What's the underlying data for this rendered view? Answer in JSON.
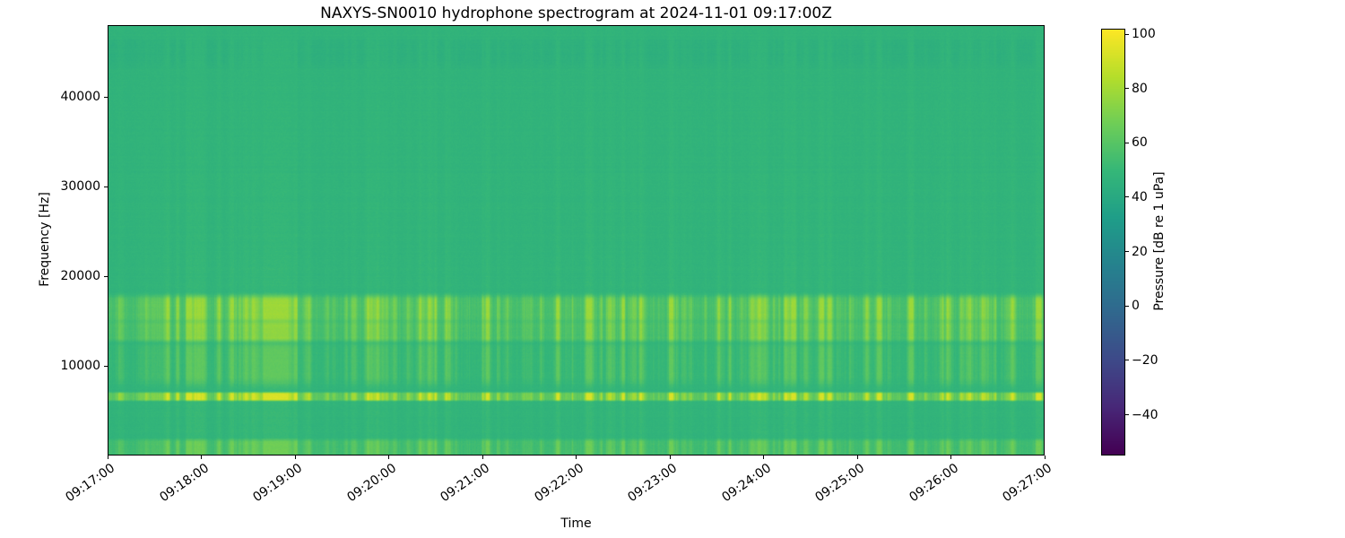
{
  "chart_data": {
    "type": "heatmap",
    "variant": "spectrogram",
    "title": "NAXYS-SN0010 hydrophone spectrogram at 2024-11-01 09:17:00Z",
    "xlabel": "Time",
    "ylabel": "Frequency [Hz]",
    "x_ticks": [
      "09:17:00",
      "09:18:00",
      "09:19:00",
      "09:20:00",
      "09:21:00",
      "09:22:00",
      "09:23:00",
      "09:24:00",
      "09:25:00",
      "09:26:00",
      "09:27:00"
    ],
    "y_ticks": [
      10000,
      20000,
      30000,
      40000
    ],
    "freq_range_hz": [
      0,
      48000
    ],
    "time_span_s": 600,
    "grid": false,
    "legend": false,
    "colorbar": {
      "label": "Pressure [dB re 1 uPa]",
      "ticks": [
        -40,
        -20,
        0,
        20,
        40,
        60,
        80,
        100
      ],
      "vmin": -55,
      "vmax": 102,
      "colormap": "viridis",
      "viridis_stops": [
        "#440154",
        "#482878",
        "#3e4a89",
        "#31688e",
        "#26828e",
        "#1f9e89",
        "#35b779",
        "#6ece58",
        "#b5de2b",
        "#fde725"
      ]
    },
    "background_db": 47,
    "bands": [
      {
        "name": "low-frequency-noise-strip",
        "range_hz": [
          0,
          1700
        ],
        "boost_db": 5.5,
        "transient_gain": 9
      },
      {
        "name": "tonal-band-6500hz",
        "range_hz": [
          6100,
          7000
        ],
        "boost_db": 13,
        "transient_gain": 24
      },
      {
        "name": "faint-mid-band",
        "range_hz": [
          8000,
          12500
        ],
        "boost_db": 1.5,
        "transient_gain": 9
      },
      {
        "name": "broadband-13-15khz",
        "range_hz": [
          12800,
          14800
        ],
        "boost_db": 6.5,
        "transient_gain": 15
      },
      {
        "name": "broadband-15-18khz",
        "range_hz": [
          14900,
          17800
        ],
        "boost_db": 7.5,
        "transient_gain": 17
      },
      {
        "name": "high-frequency-dip",
        "range_hz": [
          43500,
          46500
        ],
        "boost_db": -2.5,
        "transient_gain": 2
      }
    ],
    "transient_count": 170,
    "seed": 42
  }
}
